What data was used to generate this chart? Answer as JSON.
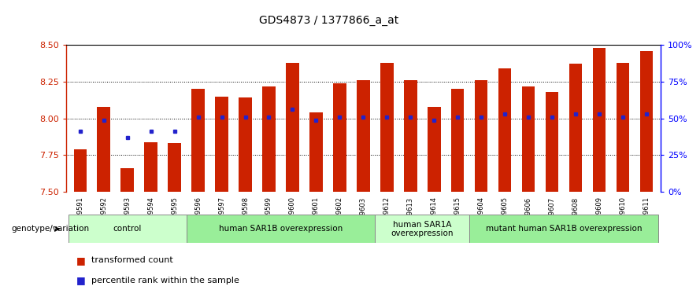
{
  "title": "GDS4873 / 1377866_a_at",
  "samples": [
    "GSM1279591",
    "GSM1279592",
    "GSM1279593",
    "GSM1279594",
    "GSM1279595",
    "GSM1279596",
    "GSM1279597",
    "GSM1279598",
    "GSM1279599",
    "GSM1279600",
    "GSM1279601",
    "GSM1279602",
    "GSM1279603",
    "GSM1279612",
    "GSM1279613",
    "GSM1279614",
    "GSM1279615",
    "GSM1279604",
    "GSM1279605",
    "GSM1279606",
    "GSM1279607",
    "GSM1279608",
    "GSM1279609",
    "GSM1279610",
    "GSM1279611"
  ],
  "transformed_count": [
    7.79,
    8.08,
    7.66,
    7.84,
    7.83,
    8.2,
    8.15,
    8.14,
    8.22,
    8.38,
    8.04,
    8.24,
    8.26,
    8.38,
    8.26,
    8.08,
    8.2,
    8.26,
    8.34,
    8.22,
    8.18,
    8.37,
    8.48,
    8.38,
    8.46
  ],
  "percentile_values": [
    7.91,
    7.99,
    7.87,
    7.91,
    7.91,
    8.01,
    8.01,
    8.01,
    8.01,
    8.06,
    7.99,
    8.01,
    8.01,
    8.01,
    8.01,
    7.99,
    8.01,
    8.01,
    8.03,
    8.01,
    8.01,
    8.03,
    8.03,
    8.01,
    8.03
  ],
  "groups": [
    {
      "label": "control",
      "start": 0,
      "end": 5,
      "color": "#ccffcc"
    },
    {
      "label": "human SAR1B overexpression",
      "start": 5,
      "end": 13,
      "color": "#99ee99"
    },
    {
      "label": "human SAR1A\noverexpression",
      "start": 13,
      "end": 17,
      "color": "#ccffcc"
    },
    {
      "label": "mutant human SAR1B overexpression",
      "start": 17,
      "end": 25,
      "color": "#99ee99"
    }
  ],
  "ymin": 7.5,
  "ymax": 8.5,
  "yticks": [
    7.5,
    7.75,
    8.0,
    8.25,
    8.5
  ],
  "bar_color": "#cc2200",
  "dot_color": "#2222cc",
  "legend_items": [
    {
      "label": "transformed count",
      "color": "#cc2200"
    },
    {
      "label": "percentile rank within the sample",
      "color": "#2222cc"
    }
  ]
}
